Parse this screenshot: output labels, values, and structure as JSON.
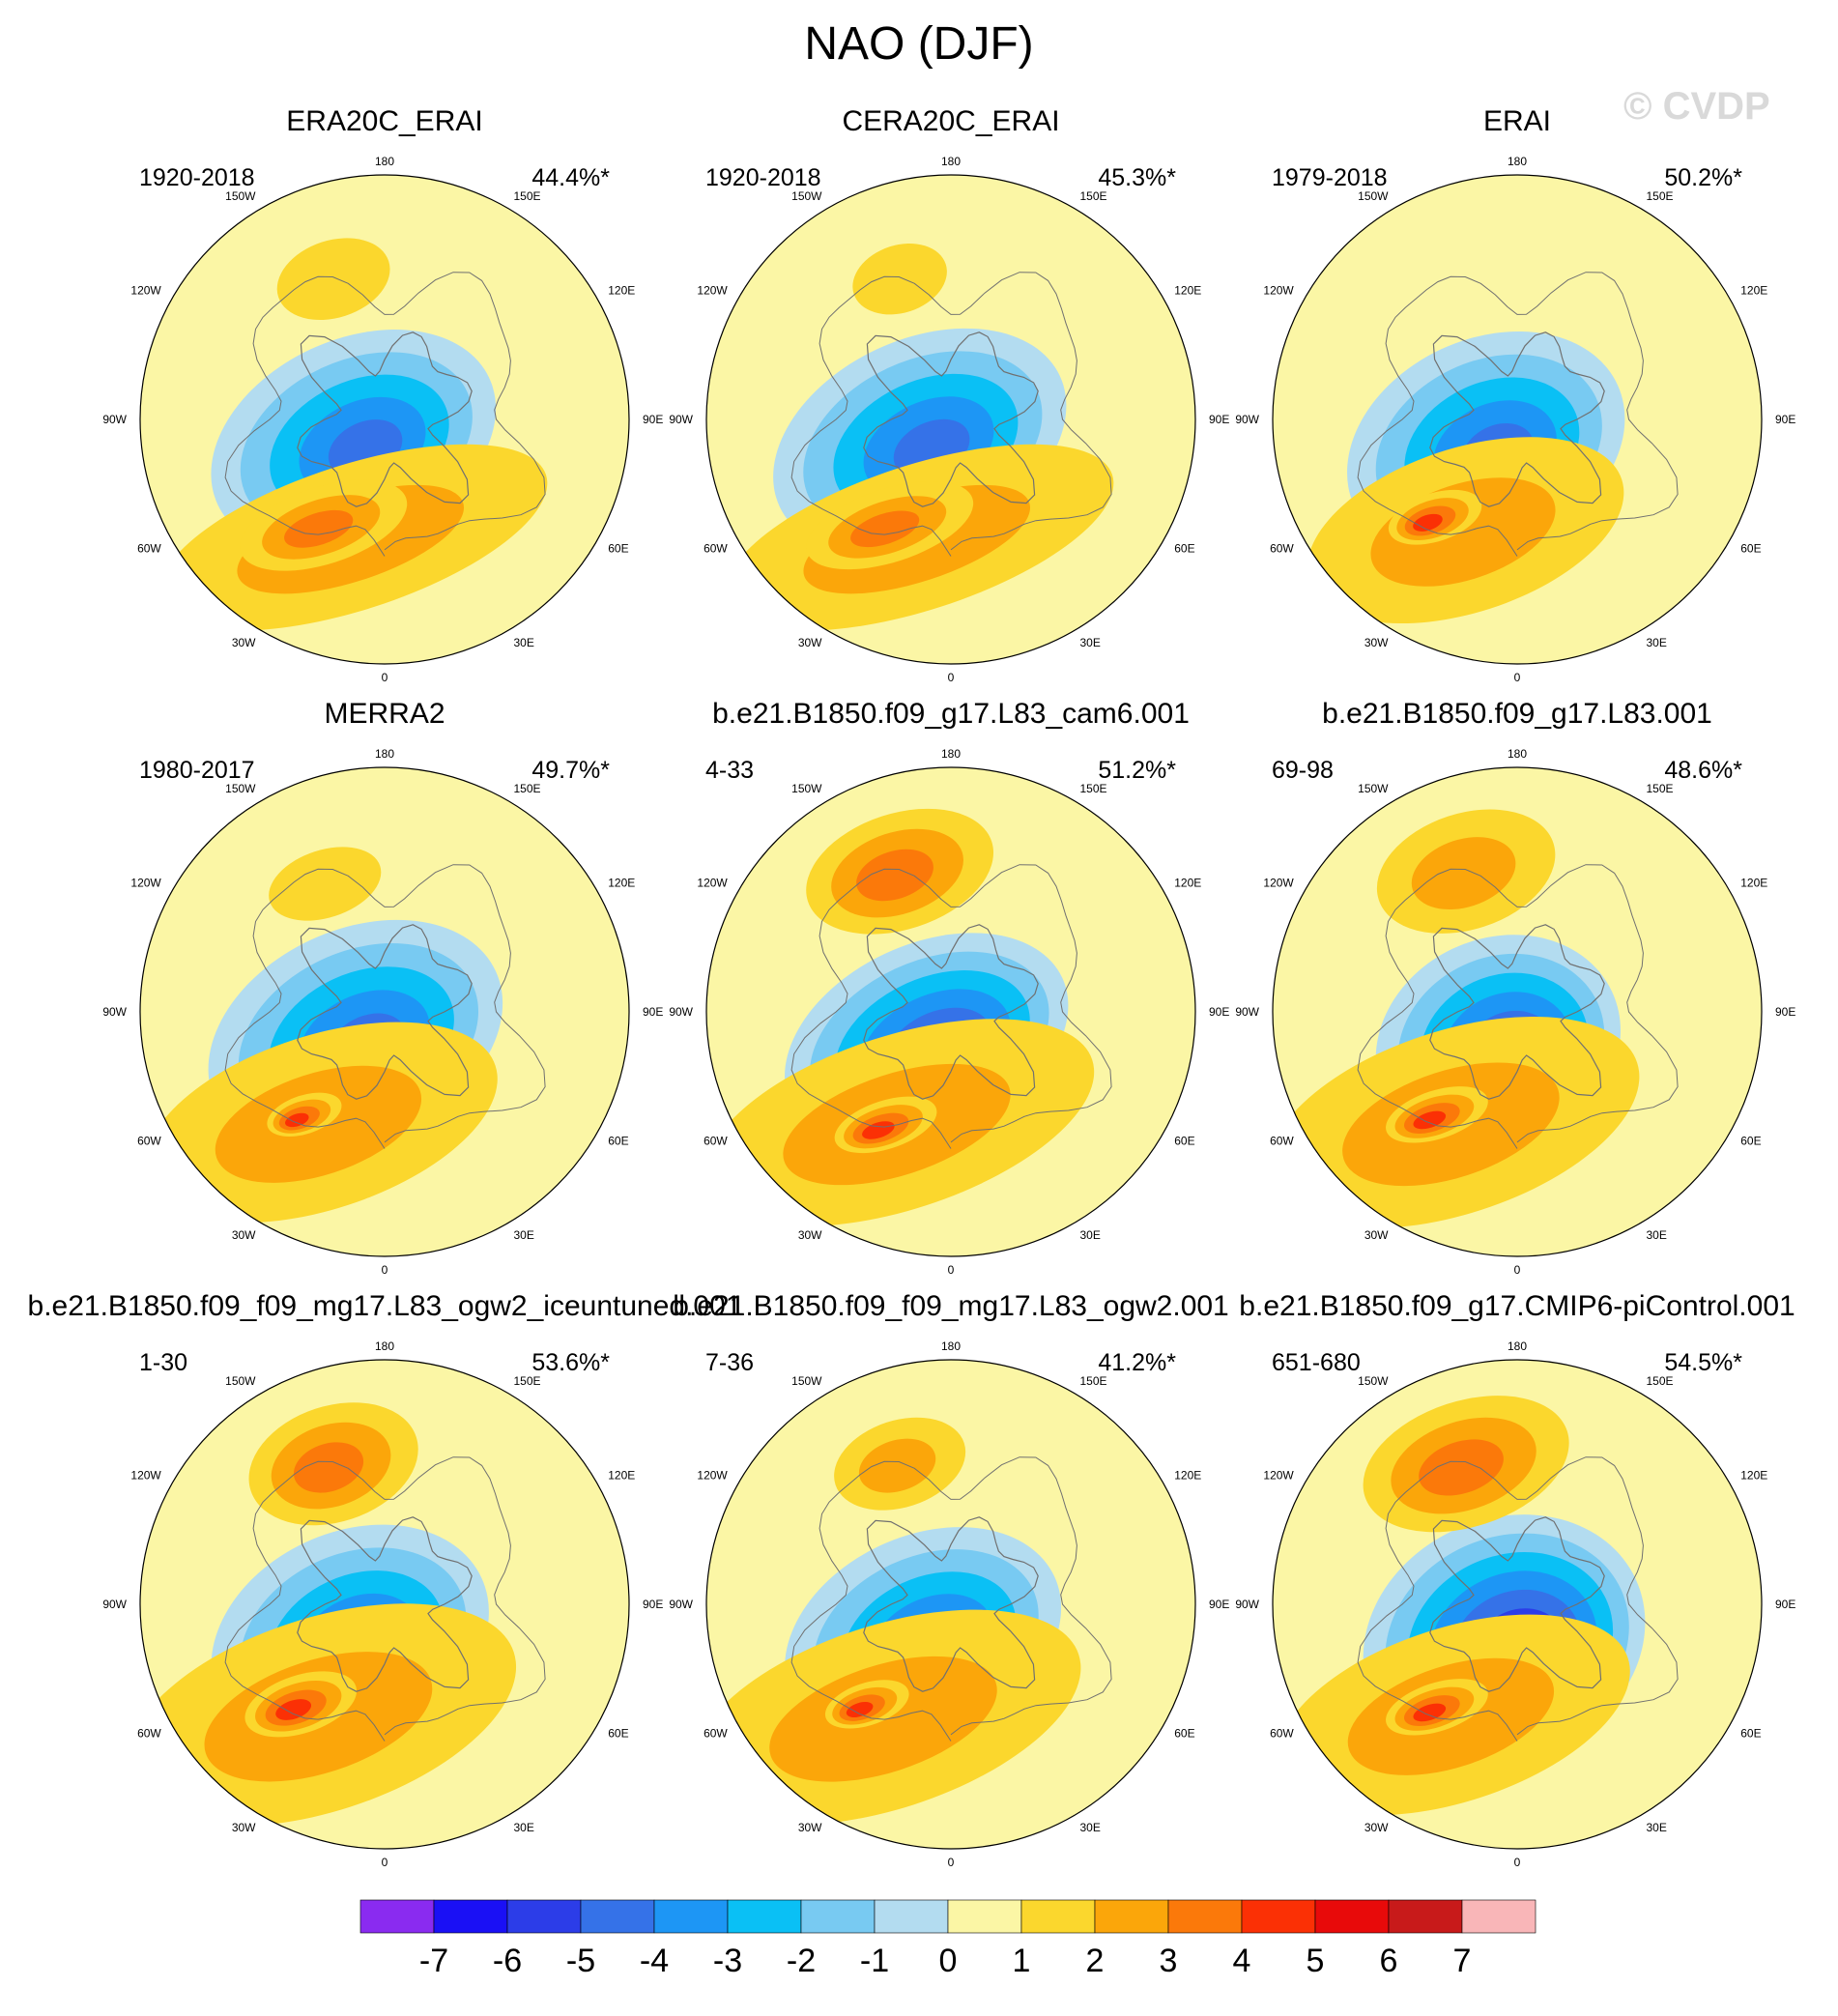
{
  "title": "NAO (DJF)",
  "watermark": "© CVDP",
  "colors": {
    "levels": [
      "#8a2bf0",
      "#1a10f5",
      "#2c3de8",
      "#3572e8",
      "#1d96f5",
      "#0ac0f5",
      "#78caf2",
      "#b3dcf0",
      "#fbf6a5",
      "#fbd72d",
      "#fba60a",
      "#fb790a",
      "#fb3005",
      "#e80a0a",
      "#c81a1a",
      "#f9b6b8"
    ],
    "coast": "#707070",
    "mapEdge": "#000000"
  },
  "chart_data": {
    "type": "heatmap",
    "projection": "polar stereographic, north pole",
    "longitude_labels": [
      "180",
      "150E",
      "120E",
      "90E",
      "60E",
      "30E",
      "0",
      "30W",
      "60W",
      "90W",
      "120W",
      "150W"
    ],
    "colorbar": {
      "labels": [
        "-7",
        "-6",
        "-5",
        "-4",
        "-3",
        "-2",
        "-1",
        "0",
        "1",
        "2",
        "3",
        "4",
        "5",
        "6",
        "7"
      ],
      "boundaries": [
        -7,
        -6,
        -5,
        -4,
        -3,
        -2,
        -1,
        0,
        1,
        2,
        3,
        4,
        5,
        6,
        7
      ]
    },
    "panels": [
      {
        "title": "ERA20C_ERAI",
        "period": "1920-2018",
        "pct": "44.4%*",
        "features": [
          {
            "v": -4,
            "lon": 305,
            "lat": 76,
            "sx": 155,
            "sy": 105
          },
          {
            "v": 2,
            "lon": 345,
            "lat": 45,
            "sx": 210,
            "sy": 75
          },
          {
            "v": 1,
            "lon": 200,
            "lat": 35,
            "sx": 60,
            "sy": 40
          },
          {
            "v": 3,
            "lon": 330,
            "lat": 45,
            "sx": 90,
            "sy": 40
          }
        ],
        "max_neg": -5,
        "max_pos": 3
      },
      {
        "title": "CERA20C_ERAI",
        "period": "1920-2018",
        "pct": "45.3%*",
        "features": [
          {
            "v": -4,
            "lon": 305,
            "lat": 76,
            "sx": 160,
            "sy": 105
          },
          {
            "v": 2,
            "lon": 345,
            "lat": 45,
            "sx": 210,
            "sy": 75
          },
          {
            "v": 1,
            "lon": 200,
            "lat": 35,
            "sx": 50,
            "sy": 35
          },
          {
            "v": 3,
            "lon": 330,
            "lat": 45,
            "sx": 90,
            "sy": 38
          }
        ],
        "max_neg": -5,
        "max_pos": 3
      },
      {
        "title": "ERAI",
        "period": "1979-2018",
        "pct": "50.2%*",
        "features": [
          {
            "v": -4,
            "lon": 310,
            "lat": 75,
            "sx": 150,
            "sy": 110
          },
          {
            "v": 2,
            "lon": 335,
            "lat": 45,
            "sx": 170,
            "sy": 85
          },
          {
            "v": 4,
            "lon": 320,
            "lat": 43,
            "sx": 50,
            "sy": 25
          }
        ],
        "max_neg": -5,
        "max_pos": 4
      },
      {
        "title": "MERRA2",
        "period": "1980-2017",
        "pct": "49.7%*",
        "features": [
          {
            "v": -4,
            "lon": 310,
            "lat": 76,
            "sx": 160,
            "sy": 110
          },
          {
            "v": 2,
            "lon": 330,
            "lat": 43,
            "sx": 190,
            "sy": 90
          },
          {
            "v": 1,
            "lon": 205,
            "lat": 38,
            "sx": 60,
            "sy": 35
          },
          {
            "v": 4,
            "lon": 322,
            "lat": 42,
            "sx": 40,
            "sy": 20
          }
        ],
        "max_neg": -5,
        "max_pos": 4
      },
      {
        "title": "b.e21.B1850.f09_g17.L83_cam6.001",
        "period": "4-33",
        "pct": "51.2%*",
        "features": [
          {
            "v": -4,
            "lon": 320,
            "lat": 76,
            "sx": 155,
            "sy": 100
          },
          {
            "v": 2,
            "lon": 335,
            "lat": 45,
            "sx": 210,
            "sy": 90
          },
          {
            "v": 3,
            "lon": 200,
            "lat": 35,
            "sx": 100,
            "sy": 60
          },
          {
            "v": 4,
            "lon": 330,
            "lat": 42,
            "sx": 55,
            "sy": 25
          }
        ],
        "max_neg": -6,
        "max_pos": 4
      },
      {
        "title": "b.e21.B1850.f09_g17.L83.001",
        "period": "69-98",
        "pct": "48.6%*",
        "features": [
          {
            "v": -4,
            "lon": 330,
            "lat": 76,
            "sx": 130,
            "sy": 110
          },
          {
            "v": 2,
            "lon": 330,
            "lat": 43,
            "sx": 200,
            "sy": 95
          },
          {
            "v": 2,
            "lon": 200,
            "lat": 35,
            "sx": 95,
            "sy": 60
          },
          {
            "v": 4,
            "lon": 322,
            "lat": 42,
            "sx": 55,
            "sy": 25
          }
        ],
        "max_neg": -6,
        "max_pos": 4
      },
      {
        "title": "b.e21.B1850.f09_f09_mg17.L83_ogw2_iceuntuned.001",
        "period": "1-30",
        "pct": "53.6%*",
        "features": [
          {
            "v": -4,
            "lon": 315,
            "lat": 72,
            "sx": 150,
            "sy": 110
          },
          {
            "v": 2,
            "lon": 330,
            "lat": 43,
            "sx": 210,
            "sy": 100
          },
          {
            "v": 3,
            "lon": 200,
            "lat": 35,
            "sx": 90,
            "sy": 60
          },
          {
            "v": 4,
            "lon": 320,
            "lat": 42,
            "sx": 60,
            "sy": 30
          }
        ],
        "max_neg": -5,
        "max_pos": 4
      },
      {
        "title": "b.e21.B1850.f09_f09_mg17.L83_ogw2.001",
        "period": "7-36",
        "pct": "41.2%*",
        "features": [
          {
            "v": -4,
            "lon": 320,
            "lat": 74,
            "sx": 150,
            "sy": 105
          },
          {
            "v": 2,
            "lon": 330,
            "lat": 42,
            "sx": 210,
            "sy": 95
          },
          {
            "v": 2,
            "lon": 200,
            "lat": 35,
            "sx": 70,
            "sy": 45
          },
          {
            "v": 4,
            "lon": 320,
            "lat": 42,
            "sx": 45,
            "sy": 22
          }
        ],
        "max_neg": -5,
        "max_pos": 4
      },
      {
        "title": "b.e21.B1850.f09_g17.CMIP6-piControl.001",
        "period": "651-680",
        "pct": "54.5%*",
        "features": [
          {
            "v": -4,
            "lon": 340,
            "lat": 76,
            "sx": 150,
            "sy": 125
          },
          {
            "v": 2,
            "lon": 330,
            "lat": 43,
            "sx": 190,
            "sy": 90
          },
          {
            "v": 3,
            "lon": 200,
            "lat": 35,
            "sx": 110,
            "sy": 65
          },
          {
            "v": 4,
            "lon": 322,
            "lat": 42,
            "sx": 55,
            "sy": 25
          }
        ],
        "max_neg": -7,
        "max_pos": 4
      }
    ]
  }
}
